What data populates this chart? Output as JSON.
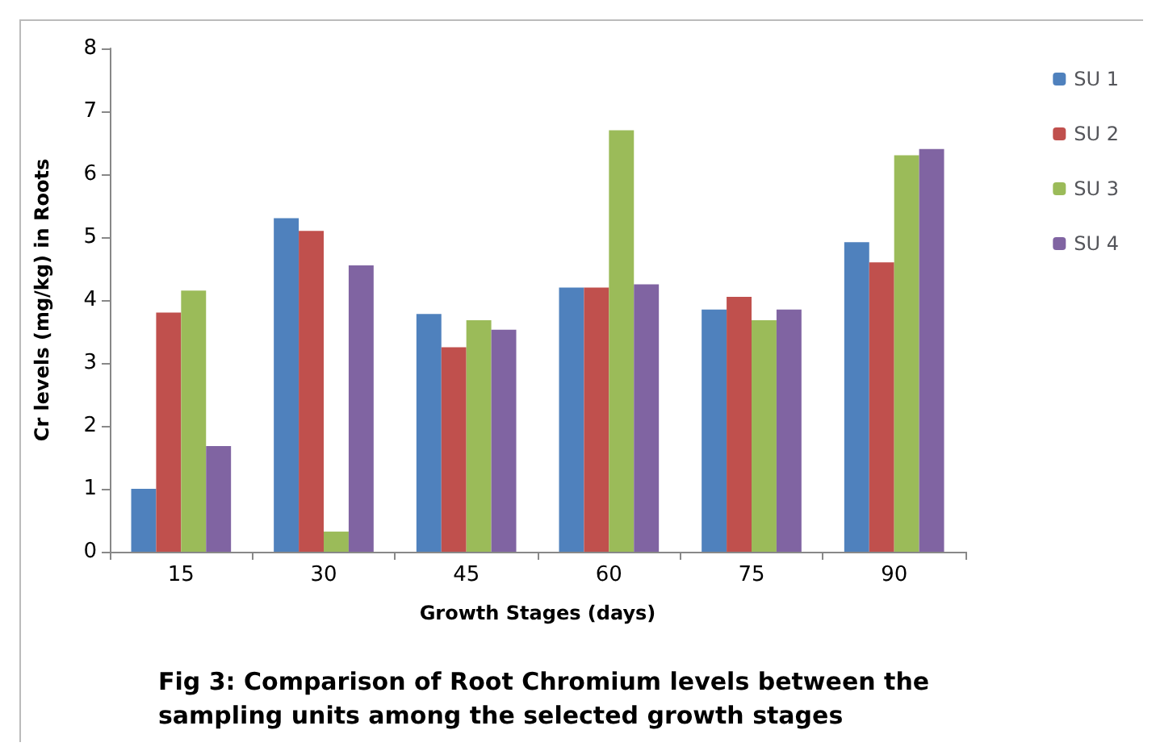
{
  "chart_data": {
    "type": "bar",
    "xlabel": "Growth Stages (days)",
    "ylabel": "Cr levels (mg/kg) in Roots",
    "annotations": [
      "Fig 3: Comparison of Root Chromium levels between the sampling units among the selected growth stages"
    ],
    "categories": [
      "15",
      "30",
      "45",
      "60",
      "75",
      "90"
    ],
    "series": [
      {
        "name": "SU 1",
        "color": "#4f81bd",
        "values": [
          1.0,
          5.3,
          3.78,
          4.2,
          3.85,
          4.92
        ]
      },
      {
        "name": "SU 2",
        "color": "#c0504d",
        "values": [
          3.8,
          5.1,
          3.25,
          4.2,
          4.05,
          4.6
        ]
      },
      {
        "name": "SU 3",
        "color": "#9bbb59",
        "values": [
          4.15,
          0.32,
          3.68,
          6.7,
          3.68,
          6.3
        ]
      },
      {
        "name": "SU 4",
        "color": "#8064a2",
        "values": [
          1.68,
          4.55,
          3.53,
          4.25,
          3.85,
          6.4
        ]
      }
    ],
    "ylim": [
      0,
      8
    ],
    "yticks": [
      0,
      1,
      2,
      3,
      4,
      5,
      6,
      7,
      8
    ],
    "grid": false,
    "legend": "top right"
  }
}
